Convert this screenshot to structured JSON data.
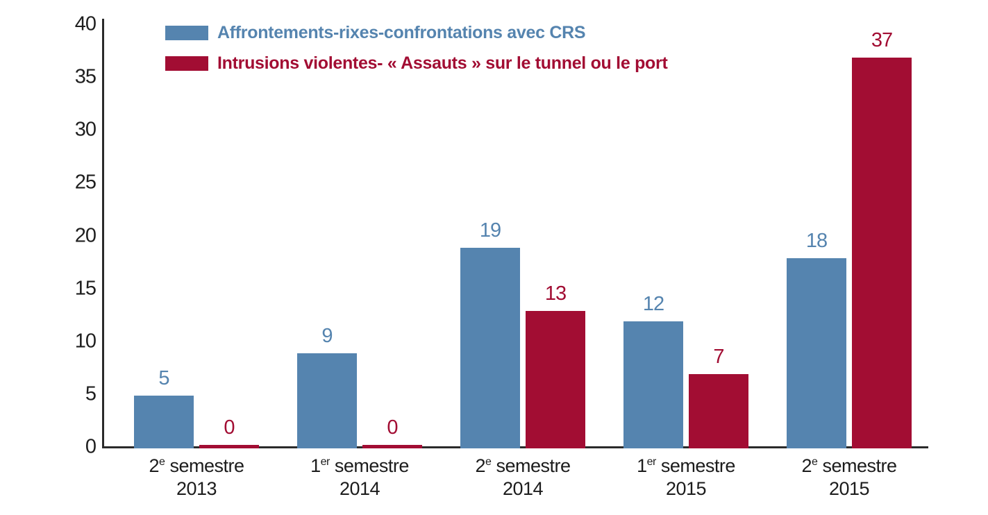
{
  "chart_data": {
    "type": "bar",
    "title": "",
    "xlabel": "",
    "ylabel": "",
    "ylim": [
      0,
      40
    ],
    "yticks": [
      0,
      5,
      10,
      15,
      20,
      25,
      30,
      35,
      40
    ],
    "grid": false,
    "legend_position": "top-left",
    "axis_color": "#2a2a2a",
    "tick_label_color": "#1f1f1f",
    "categories": [
      {
        "ordinal": "2",
        "suffix": "e",
        "word": "semestre",
        "year": "2013"
      },
      {
        "ordinal": "1",
        "suffix": "er",
        "word": "semestre",
        "year": "2014"
      },
      {
        "ordinal": "2",
        "suffix": "e",
        "word": "semestre",
        "year": "2014"
      },
      {
        "ordinal": "1",
        "suffix": "er",
        "word": "semestre",
        "year": "2015"
      },
      {
        "ordinal": "2",
        "suffix": "e",
        "word": "semestre",
        "year": "2015"
      }
    ],
    "series": [
      {
        "name": "Affrontements-rixes-confrontations avec CRS",
        "color": "#5584af",
        "values": [
          5,
          9,
          19,
          12,
          18
        ]
      },
      {
        "name": "Intrusions violentes- « Assauts » sur le tunnel ou le port",
        "color": "#a20d33",
        "values": [
          0,
          0,
          13,
          7,
          37
        ]
      }
    ]
  }
}
